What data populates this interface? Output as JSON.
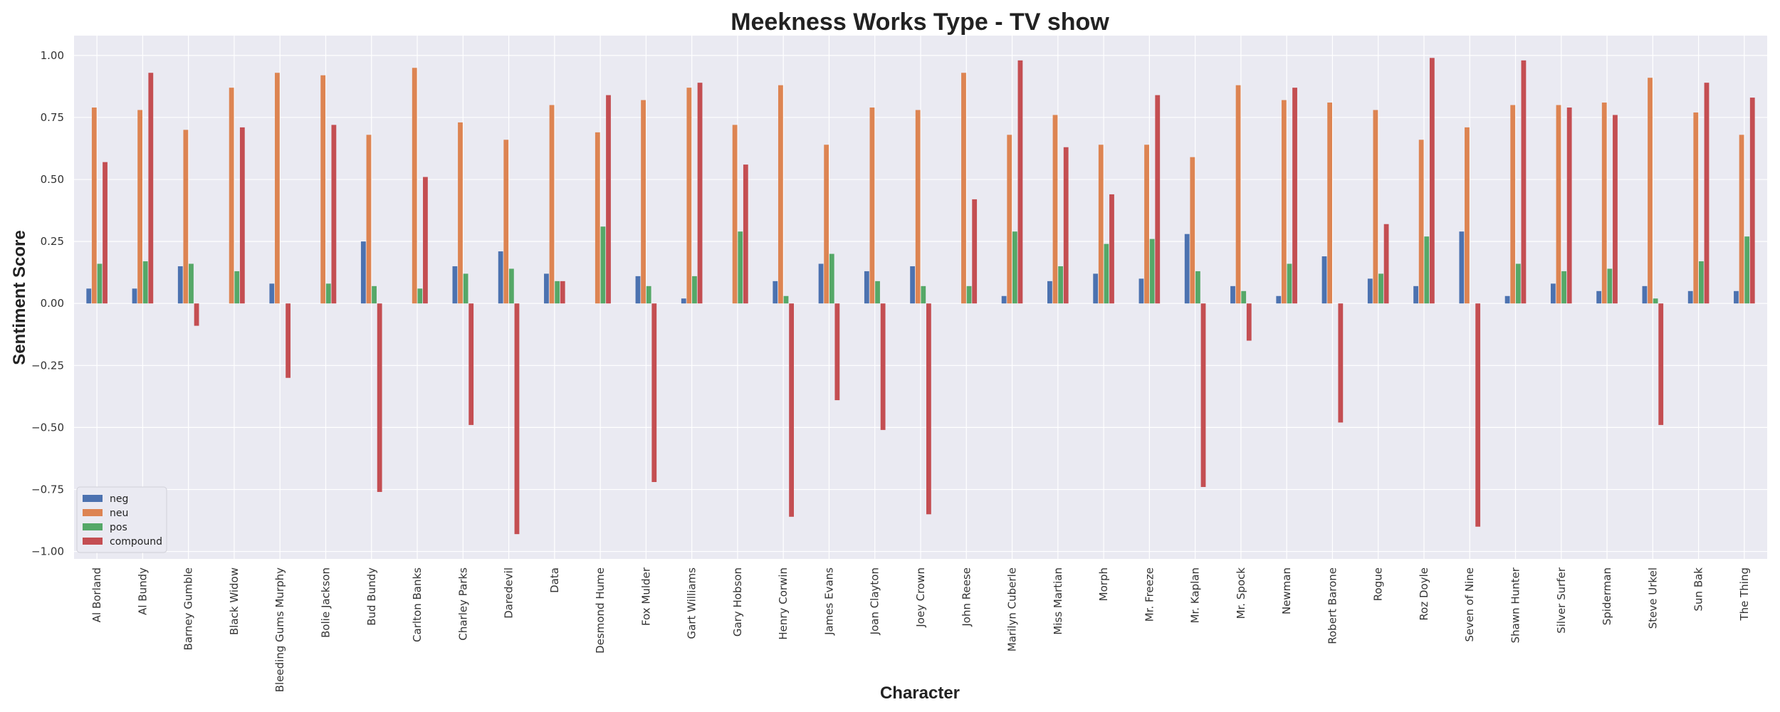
{
  "chart_data": {
    "type": "bar",
    "title": "Meekness Works Type - TV show",
    "xlabel": "Character",
    "ylabel": "Sentiment Score",
    "ylim": [
      -1.03,
      1.08
    ],
    "yticks": [
      "1.00",
      "0.75",
      "0.50",
      "0.25",
      "0.00",
      "−0.25",
      "−0.50",
      "−0.75",
      "−1.00"
    ],
    "ytick_values": [
      1.0,
      0.75,
      0.5,
      0.25,
      0.0,
      -0.25,
      -0.5,
      -0.75,
      -1.0
    ],
    "grid": true,
    "legend": "lower-left",
    "categories": [
      "Al Borland",
      "Al Bundy",
      "Barney Gumble",
      "Black Widow",
      "Bleeding Gums Murphy",
      "Bolie Jackson",
      "Bud Bundy",
      "Carlton Banks",
      "Charley Parks",
      "Daredevil",
      "Data",
      "Desmond Hume",
      "Fox Mulder",
      "Gart Williams",
      "Gary Hobson",
      "Henry Corwin",
      "James Evans",
      "Joan Clayton",
      "Joey Crown",
      "John Reese",
      "Marilyn Cuberle",
      "Miss Martian",
      "Morph",
      "Mr. Freeze",
      "Mr. Kaplan",
      "Mr. Spock",
      "Newman",
      "Robert Barone",
      "Rogue",
      "Roz Doyle",
      "Seven of Nine",
      "Shawn Hunter",
      "Silver Surfer",
      "Spiderman",
      "Steve Urkel",
      "Sun Bak",
      "The Thing"
    ],
    "series": [
      {
        "name": "neg",
        "color": "#4c72b0",
        "values": [
          0.06,
          0.06,
          0.15,
          0.0,
          0.08,
          0.0,
          0.25,
          0.0,
          0.15,
          0.21,
          0.12,
          0.0,
          0.11,
          0.02,
          0.0,
          0.09,
          0.16,
          0.13,
          0.15,
          0.0,
          0.03,
          0.09,
          0.12,
          0.1,
          0.28,
          0.07,
          0.03,
          0.19,
          0.1,
          0.07,
          0.29,
          0.03,
          0.08,
          0.05,
          0.07,
          0.05,
          0.05
        ]
      },
      {
        "name": "neu",
        "color": "#dd8452",
        "values": [
          0.79,
          0.78,
          0.7,
          0.87,
          0.93,
          0.92,
          0.68,
          0.95,
          0.73,
          0.66,
          0.8,
          0.69,
          0.82,
          0.87,
          0.72,
          0.88,
          0.64,
          0.79,
          0.78,
          0.93,
          0.68,
          0.76,
          0.64,
          0.64,
          0.59,
          0.88,
          0.82,
          0.81,
          0.78,
          0.66,
          0.71,
          0.8,
          0.8,
          0.81,
          0.91,
          0.77,
          0.68
        ]
      },
      {
        "name": "pos",
        "color": "#55a868",
        "values": [
          0.16,
          0.17,
          0.16,
          0.13,
          0.0,
          0.08,
          0.07,
          0.06,
          0.12,
          0.14,
          0.09,
          0.31,
          0.07,
          0.11,
          0.29,
          0.03,
          0.2,
          0.09,
          0.07,
          0.07,
          0.29,
          0.15,
          0.24,
          0.26,
          0.13,
          0.05,
          0.16,
          0.0,
          0.12,
          0.27,
          0.0,
          0.16,
          0.13,
          0.14,
          0.02,
          0.17,
          0.27
        ]
      },
      {
        "name": "compound",
        "color": "#c44e52",
        "values": [
          0.57,
          0.93,
          -0.09,
          0.71,
          -0.3,
          0.72,
          -0.76,
          0.51,
          -0.49,
          -0.93,
          0.09,
          0.84,
          -0.72,
          0.89,
          0.56,
          -0.86,
          -0.39,
          -0.51,
          -0.85,
          0.42,
          0.98,
          0.63,
          0.44,
          0.84,
          -0.74,
          -0.15,
          0.87,
          -0.48,
          0.32,
          0.99,
          -0.9,
          0.98,
          0.79,
          0.76,
          -0.49,
          0.89,
          0.83
        ]
      }
    ]
  }
}
